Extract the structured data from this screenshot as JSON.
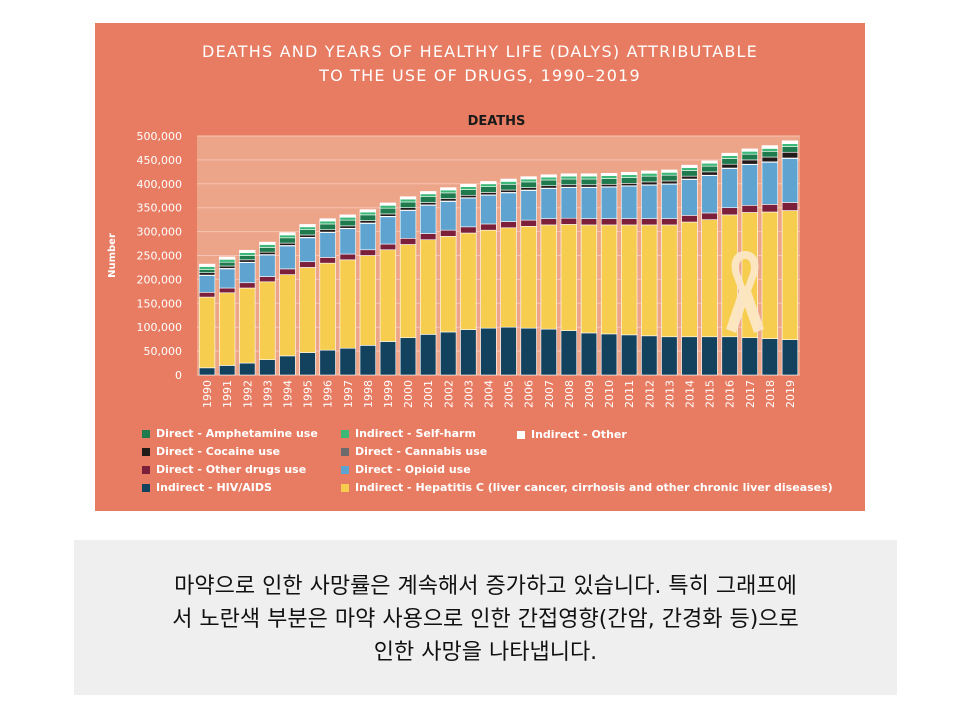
{
  "figure": {
    "title_line1": "DEATHS AND YEARS OF HEALTHY LIFE (DALYS) ATTRIBUTABLE",
    "title_line2": "TO THE USE OF DRUGS, 1990–2019",
    "ribbon_icon": "awareness-ribbon-icon"
  },
  "chart_data": {
    "type": "bar",
    "stacked": true,
    "title": "DEATHS",
    "xlabel": "",
    "ylabel": "Number",
    "ylim": [
      0,
      500000
    ],
    "yticks": [
      0,
      50000,
      100000,
      150000,
      200000,
      250000,
      300000,
      350000,
      400000,
      450000,
      500000
    ],
    "ytick_labels": [
      "0",
      "50,000",
      "100,000",
      "150,000",
      "200,000",
      "250,000",
      "300,000",
      "350,000",
      "400,000",
      "450,000",
      "500,000"
    ],
    "categories": [
      "1990",
      "1991",
      "1992",
      "1993",
      "1994",
      "1995",
      "1996",
      "1997",
      "1998",
      "1999",
      "2000",
      "2001",
      "2002",
      "2003",
      "2004",
      "2005",
      "2006",
      "2007",
      "2008",
      "2009",
      "2010",
      "2011",
      "2012",
      "2013",
      "2014",
      "2015",
      "2016",
      "2017",
      "2018",
      "2019"
    ],
    "series": [
      {
        "name": "Indirect - HIV/AIDS",
        "color": "#12425e",
        "values": [
          15000,
          20000,
          25000,
          32000,
          40000,
          47000,
          52000,
          56000,
          62000,
          70000,
          78000,
          85000,
          90000,
          95000,
          98000,
          100000,
          98000,
          96000,
          93000,
          88000,
          86000,
          84000,
          82000,
          80000,
          80000,
          80000,
          80000,
          78000,
          76000,
          74000
        ]
      },
      {
        "name": "Indirect - Hepatitis C (liver cancer, cirrhosis and other chronic liver diseases)",
        "color": "#f6cd4e",
        "values": [
          148000,
          152000,
          157000,
          163000,
          170000,
          178000,
          182000,
          185000,
          188000,
          192000,
          195000,
          198000,
          200000,
          202000,
          205000,
          208000,
          213000,
          218000,
          222000,
          226000,
          228000,
          230000,
          232000,
          234000,
          240000,
          245000,
          255000,
          262000,
          265000,
          270000
        ]
      },
      {
        "name": "Direct - Other drugs use",
        "color": "#7b1f3a",
        "values": [
          10000,
          10000,
          11000,
          11000,
          12000,
          12000,
          12000,
          12000,
          12000,
          12000,
          13000,
          13000,
          13000,
          13000,
          13000,
          13000,
          13000,
          13000,
          13000,
          13000,
          13000,
          13000,
          13000,
          13000,
          14000,
          14000,
          15000,
          15000,
          16000,
          17000
        ]
      },
      {
        "name": "Direct - Opioid use",
        "color": "#5fa3d1",
        "values": [
          35000,
          40000,
          42000,
          45000,
          48000,
          50000,
          52000,
          53000,
          55000,
          57000,
          58000,
          59000,
          60000,
          60000,
          60000,
          60000,
          62000,
          63000,
          64000,
          65000,
          66000,
          68000,
          70000,
          72000,
          75000,
          78000,
          82000,
          85000,
          88000,
          92000
        ]
      },
      {
        "name": "Direct - Cannabis use",
        "color": "#6b6b6b",
        "values": [
          1000,
          1000,
          1000,
          1000,
          1000,
          1000,
          1000,
          1000,
          1000,
          1000,
          1000,
          1000,
          1000,
          1000,
          1000,
          1000,
          1000,
          1000,
          1000,
          1000,
          1000,
          1000,
          1000,
          1000,
          1000,
          1000,
          1000,
          1000,
          1000,
          1000
        ]
      },
      {
        "name": "Direct - Cocaine use",
        "color": "#231a1a",
        "values": [
          5000,
          5000,
          5000,
          5000,
          5000,
          5000,
          5000,
          5000,
          5000,
          5000,
          5000,
          5000,
          5000,
          5000,
          5000,
          5000,
          5000,
          5000,
          5000,
          5000,
          5000,
          5000,
          6000,
          6000,
          6000,
          7000,
          8000,
          9000,
          10000,
          12000
        ]
      },
      {
        "name": "Direct - Amphetamine use",
        "color": "#1f7a4d",
        "values": [
          7000,
          8000,
          9000,
          10000,
          11000,
          11000,
          12000,
          12000,
          12000,
          12000,
          12000,
          12000,
          12000,
          12000,
          12000,
          12000,
          12000,
          12000,
          12000,
          12000,
          12000,
          12000,
          12000,
          12000,
          12000,
          12000,
          12000,
          12000,
          12000,
          12000
        ]
      },
      {
        "name": "Indirect - Self-harm",
        "color": "#3cb878",
        "values": [
          6000,
          6000,
          6000,
          6000,
          6000,
          6000,
          6000,
          6000,
          6000,
          6000,
          6000,
          6000,
          6000,
          6000,
          6000,
          6000,
          6000,
          6000,
          6000,
          6000,
          6000,
          6000,
          6000,
          6000,
          6000,
          6000,
          6000,
          6000,
          6000,
          6000
        ]
      },
      {
        "name": "Indirect - Other",
        "color": "#ffffff",
        "values": [
          5000,
          5000,
          5000,
          5000,
          5000,
          5000,
          5000,
          5000,
          5000,
          5000,
          5000,
          5000,
          5000,
          5000,
          5000,
          5000,
          5000,
          5000,
          5000,
          5000,
          5000,
          5000,
          5000,
          5000,
          5000,
          5000,
          5000,
          5000,
          6000,
          6000
        ]
      }
    ],
    "legend": {
      "col1": [
        "Direct - Amphetamine use",
        "Direct - Cocaine use",
        "Direct - Other drugs use",
        "Indirect - HIV/AIDS"
      ],
      "col2": [
        "Indirect - Self-harm",
        "Direct - Cannabis use",
        "Direct - Opioid use",
        "Indirect - Hepatitis C (liver cancer, cirrhosis and other chronic liver diseases)"
      ],
      "col3": [
        "Indirect - Other"
      ]
    }
  },
  "caption": {
    "line1": "마약으로 인한 사망률은 계속해서 증가하고 있습니다. 특히 그래프에",
    "line2": "서 노란색 부분은 마약 사용으로 인한 간접영향(간암, 간경화 등)으로",
    "line3": "인한 사망을 나타냅니다."
  }
}
